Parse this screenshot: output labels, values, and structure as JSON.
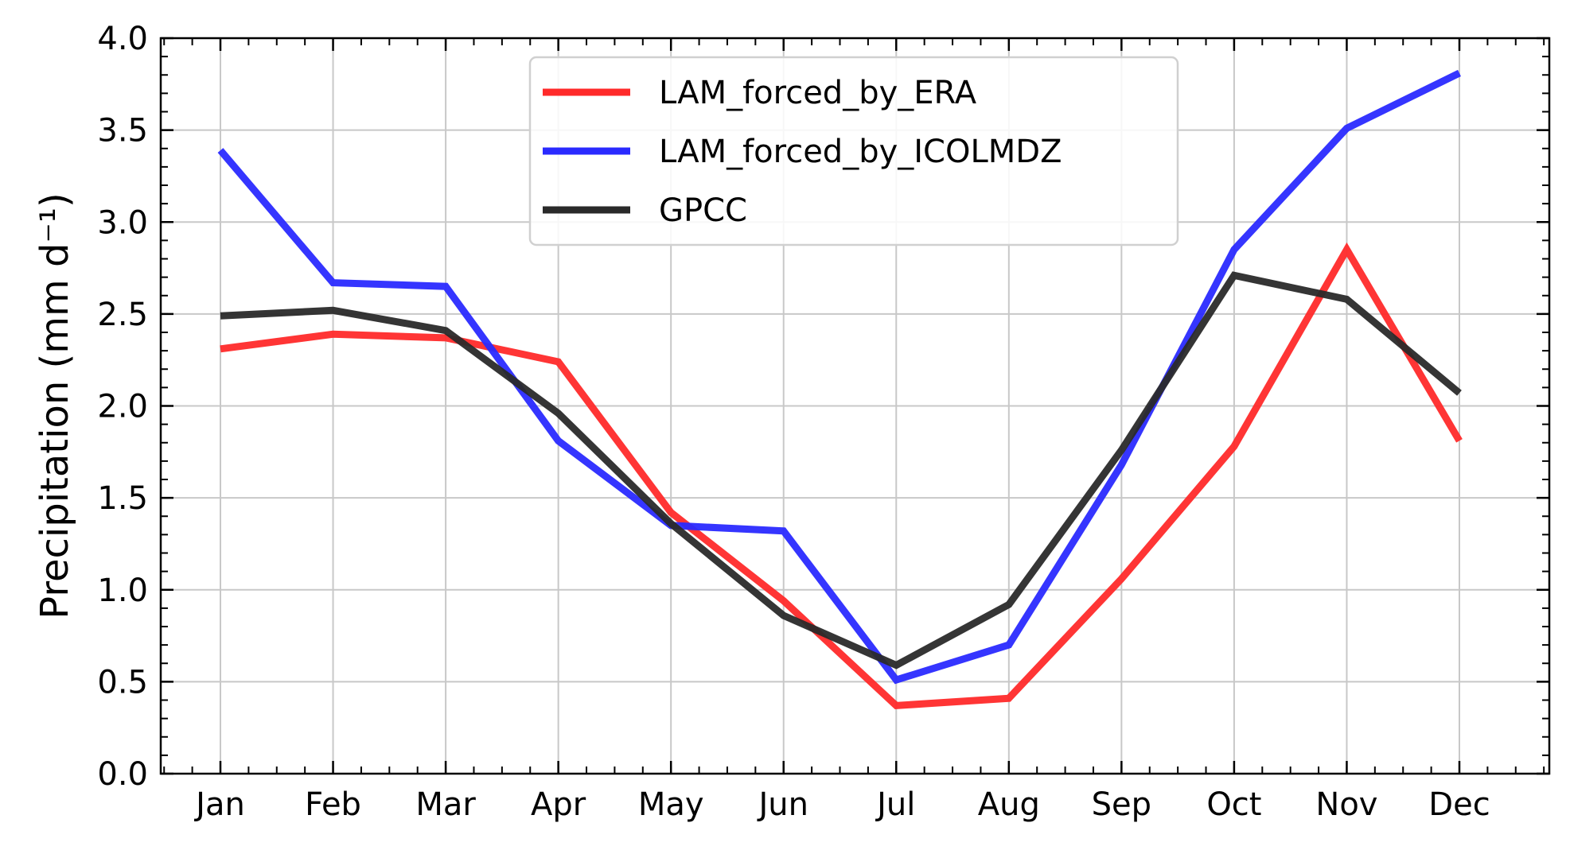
{
  "chart_data": {
    "type": "line",
    "title": "",
    "xlabel": "",
    "ylabel": "Precipitation (mm d⁻¹)",
    "categories": [
      "Jan",
      "Feb",
      "Mar",
      "Apr",
      "May",
      "Jun",
      "Jul",
      "Aug",
      "Sep",
      "Oct",
      "Nov",
      "Dec"
    ],
    "ylim": [
      0.0,
      4.0
    ],
    "yticks": [
      "0.0",
      "0.5",
      "1.0",
      "1.5",
      "2.0",
      "2.5",
      "3.0",
      "3.5",
      "4.0"
    ],
    "grid": true,
    "legend_position": "top-center",
    "series": [
      {
        "name": "LAM_forced_by_ERA",
        "color": "#ff2a2a",
        "values": [
          2.31,
          2.39,
          2.37,
          2.24,
          1.42,
          0.94,
          0.37,
          0.41,
          1.06,
          1.78,
          2.85,
          1.81
        ]
      },
      {
        "name": "LAM_forced_by_ICOLMDZ",
        "color": "#2a2aff",
        "values": [
          3.39,
          2.67,
          2.65,
          1.81,
          1.35,
          1.32,
          0.51,
          0.7,
          1.68,
          2.85,
          3.51,
          3.81
        ]
      },
      {
        "name": "GPCC",
        "color": "#2a2a2a",
        "values": [
          2.49,
          2.52,
          2.41,
          1.96,
          1.36,
          0.86,
          0.59,
          0.92,
          1.76,
          2.71,
          2.58,
          2.07
        ]
      }
    ]
  }
}
